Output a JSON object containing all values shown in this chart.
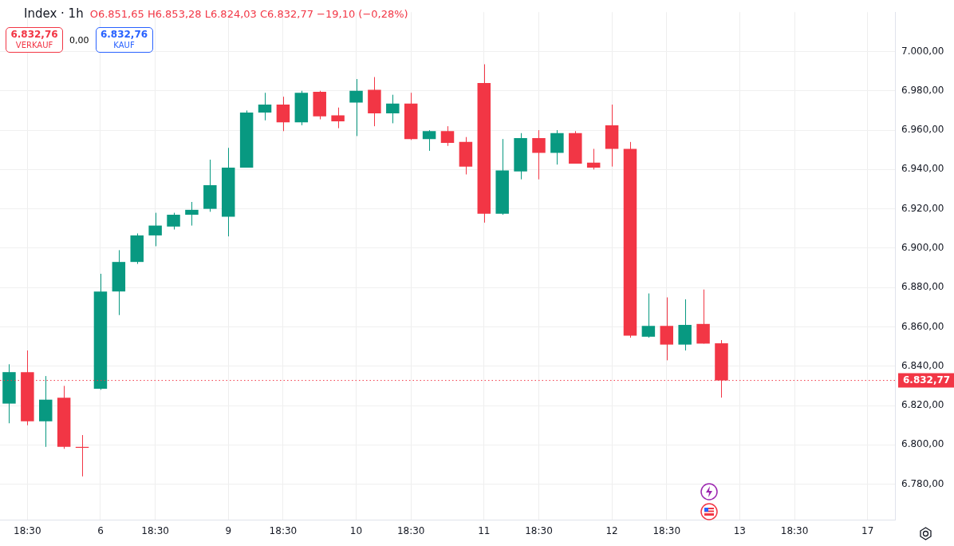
{
  "chart_data": {
    "type": "candlestick",
    "title": "Index · 1h",
    "categories": [
      null,
      "18:30",
      null,
      null,
      null,
      "6",
      null,
      null,
      "18:30",
      null,
      null,
      null,
      "9",
      null,
      null,
      "18:30",
      null,
      null,
      null,
      "10",
      null,
      null,
      "18:30",
      null,
      null,
      null,
      "11",
      null,
      null,
      "18:30",
      null,
      null,
      null,
      "12",
      null,
      null,
      "18:30",
      null,
      null,
      null,
      "13",
      null,
      null,
      "18:30",
      null,
      null,
      null,
      "17",
      null
    ],
    "ohlc": [
      [
        6821,
        6841,
        6811,
        6837
      ],
      [
        6837,
        6848,
        6810,
        6812
      ],
      [
        6812,
        6835,
        6799,
        6823
      ],
      [
        6824,
        6830,
        6798,
        6799
      ],
      [
        6799,
        6805,
        6784,
        6798.5
      ],
      [
        6828.5,
        6887,
        6828,
        6878
      ],
      [
        6878,
        6899,
        6866,
        6893
      ],
      [
        6893,
        6907.5,
        6892,
        6906.5
      ],
      [
        6906.5,
        6918,
        6901,
        6911.5
      ],
      [
        6911,
        6918,
        6909.5,
        6917
      ],
      [
        6917,
        6923.5,
        6911.5,
        6919.5
      ],
      [
        6920,
        6945,
        6918.5,
        6932
      ],
      [
        6916,
        6951,
        6906,
        6941
      ],
      [
        6941,
        6970,
        6941,
        6969
      ],
      [
        6969,
        6979,
        6965,
        6973
      ],
      [
        6973,
        6977,
        6959.5,
        6964
      ],
      [
        6964,
        6980,
        6962.5,
        6979
      ],
      [
        6979.5,
        6980,
        6965.5,
        6967
      ],
      [
        6967.5,
        6971.5,
        6961,
        6964.5
      ],
      [
        6974,
        6986,
        6957,
        6980
      ],
      [
        6980.5,
        6987,
        6962,
        6968.5
      ],
      [
        6968.5,
        6978,
        6963.5,
        6973.5
      ],
      [
        6973.5,
        6979,
        6955,
        6955.5
      ],
      [
        6955.5,
        6960,
        6949.5,
        6959.5
      ],
      [
        6959.5,
        6962,
        6952,
        6953.5
      ],
      [
        6954,
        6956.5,
        6937.5,
        6941.5
      ],
      [
        6984,
        6993.5,
        6913,
        6917.5
      ],
      [
        6917.5,
        6955.5,
        6917,
        6939.5
      ],
      [
        6939,
        6958.5,
        6935,
        6956
      ],
      [
        6956,
        6960,
        6935,
        6948.5
      ],
      [
        6948.5,
        6960,
        6942.5,
        6958.5
      ],
      [
        6958.5,
        6959.5,
        6943,
        6943
      ],
      [
        6943.5,
        6950.5,
        6940,
        6941
      ],
      [
        6962.5,
        6973,
        6941.5,
        6950.5
      ],
      [
        6950.5,
        6954,
        6854.5,
        6855.5
      ],
      [
        6855,
        6877,
        6854.5,
        6860.5
      ],
      [
        6860.5,
        6875,
        6843,
        6851
      ],
      [
        6851,
        6874,
        6848,
        6861
      ],
      [
        6861.5,
        6879,
        6851.5,
        6851.5
      ],
      [
        6851.65,
        6853.28,
        6824.03,
        6832.77
      ],
      null,
      null,
      null,
      null,
      null,
      null,
      null,
      null,
      null
    ],
    "colors": [
      "#089981",
      "#f23645",
      "#089981",
      "#f23645",
      "#f23645",
      "#089981",
      "#089981",
      "#089981",
      "#089981",
      "#089981",
      "#089981",
      "#089981",
      "#089981",
      "#089981",
      "#089981",
      "#f23645",
      "#089981",
      "#f23645",
      "#f23645",
      "#089981",
      "#f23645",
      "#089981",
      "#f23645",
      "#089981",
      "#f23645",
      "#f23645",
      "#f23645",
      "#089981",
      "#089981",
      "#f23645",
      "#089981",
      "#f23645",
      "#f23645",
      "#f23645",
      "#f23645",
      "#089981",
      "#f23645",
      "#089981",
      "#f23645",
      "#f23645",
      null,
      null,
      null,
      null,
      null,
      null,
      null,
      null,
      null
    ],
    "ylim": [
      6762,
      7020
    ],
    "yticks": [
      {
        "value": 6780,
        "label": "6.780,00"
      },
      {
        "value": 6800,
        "label": "6.800,00"
      },
      {
        "value": 6820,
        "label": "6.820,00"
      },
      {
        "value": 6840,
        "label": "6.840,00"
      },
      {
        "value": 6860,
        "label": "6.860,00"
      },
      {
        "value": 6880,
        "label": "6.880,00"
      },
      {
        "value": 6900,
        "label": "6.900,00"
      },
      {
        "value": 6920,
        "label": "6.920,00"
      },
      {
        "value": 6940,
        "label": "6.940,00"
      },
      {
        "value": 6960,
        "label": "6.960,00"
      },
      {
        "value": 6980,
        "label": "6.980,00"
      },
      {
        "value": 7000,
        "label": "7.000,00"
      }
    ],
    "ref_lines": [
      {
        "axis": "y",
        "value": 6832.77,
        "label": "6.832,77",
        "color": "#f23645",
        "line_style": "dotted"
      }
    ],
    "annotations": [
      "O6.851,65",
      "H6.853,28",
      "L6.824,03",
      "C6.832,77",
      "−19,10 (−0,28%)",
      "6.832,76",
      "VERKAUF",
      "0,00",
      "6.832,76",
      "KAUF"
    ],
    "grid": true,
    "legend": false
  }
}
